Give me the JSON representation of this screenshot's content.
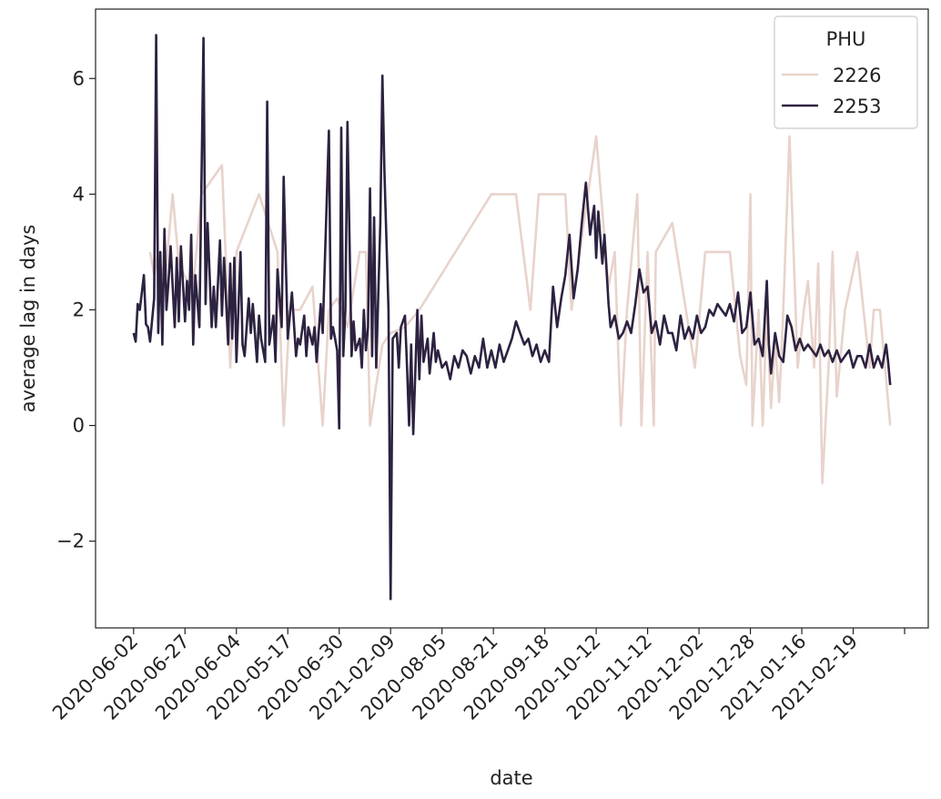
{
  "chart_data": {
    "type": "line",
    "xlabel": "date",
    "ylabel": "average lag in days",
    "legend_title": "PHU",
    "legend_position": "upper right",
    "xlim": [
      -18.5,
      386.5
    ],
    "ylim": [
      -3.5,
      7.2
    ],
    "xticks": [
      {
        "value": 0,
        "label": "2020-06-02"
      },
      {
        "value": 25,
        "label": "2020-06-27"
      },
      {
        "value": 50,
        "label": "2020-06-04"
      },
      {
        "value": 75,
        "label": "2020-05-17"
      },
      {
        "value": 100,
        "label": "2020-06-30"
      },
      {
        "value": 125,
        "label": "2021-02-09"
      },
      {
        "value": 150,
        "label": "2020-08-05"
      },
      {
        "value": 175,
        "label": "2020-08-21"
      },
      {
        "value": 200,
        "label": "2020-09-18"
      },
      {
        "value": 225,
        "label": "2020-10-12"
      },
      {
        "value": 250,
        "label": "2020-11-12"
      },
      {
        "value": 275,
        "label": "2020-12-02"
      },
      {
        "value": 300,
        "label": "2020-12-28"
      },
      {
        "value": 325,
        "label": "2021-01-16"
      },
      {
        "value": 350,
        "label": "2021-02-19"
      },
      {
        "value": 375,
        "label": null
      }
    ],
    "yticks": [
      {
        "value": -2,
        "label": "−2"
      },
      0,
      2,
      4,
      6
    ],
    "series": [
      {
        "name": "2226",
        "color": "#e8d3cc",
        "x": [
          8,
          10,
          12,
          15,
          19,
          22,
          26,
          29,
          33,
          43,
          47,
          50,
          61,
          70,
          73,
          76,
          81,
          87,
          92,
          95,
          99,
          104,
          110,
          113,
          115,
          121,
          125,
          132,
          139,
          174,
          186,
          193,
          197,
          210,
          213,
          225,
          231,
          234,
          237,
          240,
          245,
          247,
          250,
          253,
          254,
          262,
          273,
          278,
          290,
          295,
          298,
          300,
          301,
          304,
          306,
          308,
          310,
          312,
          314,
          316,
          319,
          323,
          326,
          328,
          331,
          333,
          335,
          338,
          340,
          342,
          346,
          352,
          358,
          360,
          363,
          368
        ],
        "values": [
          3.0,
          2.6,
          3.0,
          2.4,
          4.0,
          2.8,
          2.5,
          2.4,
          4.0,
          4.5,
          1.0,
          3.0,
          4.0,
          3.0,
          0.0,
          2.0,
          2.0,
          2.4,
          0.0,
          2.0,
          2.2,
          1.7,
          3.0,
          3.0,
          0.0,
          1.4,
          1.6,
          1.7,
          2.0,
          4.0,
          4.0,
          2.0,
          4.0,
          4.0,
          2.0,
          5.0,
          2.4,
          3.0,
          0.0,
          2.0,
          4.0,
          0.0,
          3.0,
          0.0,
          3.0,
          3.5,
          1.0,
          3.0,
          3.0,
          1.2,
          0.7,
          4.0,
          0.0,
          2.0,
          0.0,
          2.0,
          0.3,
          1.5,
          0.4,
          2.0,
          5.0,
          1.0,
          2.0,
          2.5,
          1.0,
          2.8,
          -1.0,
          1.0,
          3.0,
          0.5,
          2.0,
          3.0,
          1.0,
          2.0,
          2.0,
          0.0
        ]
      },
      {
        "name": "2253",
        "color": "#2d2240",
        "x": [
          0,
          1,
          2,
          3,
          5,
          6,
          7,
          8,
          10,
          11,
          12,
          13,
          14,
          15,
          16,
          17,
          18,
          20,
          21,
          22,
          23,
          25,
          26,
          27,
          28,
          29,
          30,
          32,
          34,
          35,
          36,
          38,
          39,
          40,
          42,
          43,
          44,
          46,
          47,
          48,
          49,
          50,
          52,
          53,
          54,
          56,
          57,
          58,
          60,
          61,
          62,
          64,
          65,
          66,
          68,
          69,
          70,
          72,
          73,
          75,
          76,
          77,
          79,
          80,
          81,
          83,
          84,
          85,
          87,
          88,
          89,
          91,
          92,
          93,
          95,
          96,
          97,
          99,
          100,
          101,
          102,
          103,
          104,
          106,
          107,
          108,
          110,
          111,
          112,
          113,
          114,
          115,
          116,
          117,
          118,
          120,
          121,
          122,
          124,
          125,
          126,
          128,
          129,
          130,
          132,
          133,
          134,
          135,
          136,
          138,
          139,
          140,
          141,
          143,
          144,
          146,
          147,
          148,
          150,
          152,
          154,
          156,
          158,
          160,
          162,
          164,
          166,
          168,
          170,
          172,
          174,
          176,
          178,
          180,
          182,
          184,
          186,
          188,
          190,
          192,
          194,
          196,
          198,
          200,
          202,
          204,
          206,
          208,
          210,
          212,
          214,
          216,
          218,
          220,
          222,
          224,
          225,
          226,
          228,
          229,
          231,
          232,
          234,
          236,
          238,
          240,
          242,
          244,
          246,
          248,
          250,
          252,
          254,
          256,
          258,
          260,
          262,
          264,
          266,
          268,
          270,
          272,
          274,
          276,
          278,
          280,
          282,
          284,
          286,
          288,
          290,
          292,
          294,
          296,
          298,
          300,
          302,
          304,
          306,
          308,
          309,
          310,
          312,
          314,
          316,
          318,
          320,
          322,
          324,
          326,
          328,
          330,
          332,
          334,
          336,
          338,
          340,
          342,
          344,
          346,
          348,
          350,
          352,
          354,
          356,
          358,
          360,
          362,
          364,
          366,
          367,
          368
        ],
        "values": [
          1.6,
          1.45,
          2.1,
          2.0,
          2.6,
          1.75,
          1.7,
          1.45,
          2.2,
          6.75,
          1.6,
          3.0,
          1.4,
          3.4,
          2.0,
          2.5,
          3.1,
          1.7,
          2.9,
          1.8,
          3.1,
          1.8,
          2.5,
          2.0,
          3.3,
          1.4,
          2.6,
          1.7,
          6.7,
          2.1,
          3.5,
          1.7,
          2.4,
          1.7,
          3.2,
          1.9,
          2.9,
          1.4,
          2.8,
          1.5,
          2.9,
          1.1,
          3.0,
          1.4,
          1.2,
          2.2,
          1.6,
          2.1,
          1.1,
          1.9,
          1.5,
          1.1,
          5.6,
          1.4,
          1.9,
          1.1,
          2.7,
          1.7,
          4.3,
          1.5,
          1.9,
          2.3,
          1.2,
          1.5,
          1.4,
          1.9,
          1.2,
          1.7,
          1.4,
          1.7,
          1.1,
          2.1,
          1.6,
          2.8,
          5.1,
          1.5,
          1.7,
          1.3,
          -0.05,
          5.15,
          1.2,
          2.0,
          5.25,
          1.2,
          1.8,
          1.3,
          1.5,
          1.0,
          2.0,
          1.3,
          1.7,
          4.1,
          1.2,
          3.6,
          1.0,
          3.5,
          6.05,
          4.4,
          2.0,
          -3.0,
          1.5,
          1.6,
          1.0,
          1.7,
          1.9,
          1.0,
          0.0,
          1.4,
          -0.15,
          2.0,
          0.8,
          1.9,
          1.1,
          1.5,
          0.9,
          1.6,
          1.1,
          1.3,
          1.0,
          1.1,
          0.8,
          1.2,
          1.0,
          1.3,
          1.2,
          0.9,
          1.2,
          1.0,
          1.5,
          1.0,
          1.3,
          1.0,
          1.4,
          1.1,
          1.3,
          1.5,
          1.8,
          1.6,
          1.4,
          1.5,
          1.2,
          1.4,
          1.1,
          1.3,
          1.1,
          2.4,
          1.7,
          2.2,
          2.6,
          3.3,
          2.2,
          2.7,
          3.5,
          4.2,
          3.3,
          3.8,
          2.9,
          3.7,
          2.8,
          3.3,
          2.1,
          1.7,
          1.9,
          1.5,
          1.6,
          1.8,
          1.6,
          2.1,
          2.7,
          2.3,
          2.4,
          1.6,
          1.8,
          1.4,
          1.9,
          1.6,
          1.6,
          1.3,
          1.9,
          1.5,
          1.7,
          1.5,
          1.9,
          1.6,
          1.7,
          2.0,
          1.9,
          2.1,
          2.0,
          1.9,
          2.1,
          1.8,
          2.3,
          1.6,
          1.7,
          2.3,
          1.4,
          1.5,
          1.2,
          2.5,
          1.4,
          0.9,
          1.6,
          1.2,
          1.1,
          1.9,
          1.7,
          1.3,
          1.5,
          1.3,
          1.4,
          1.3,
          1.2,
          1.4,
          1.2,
          1.3,
          1.1,
          1.3,
          1.1,
          1.2,
          1.3,
          1.0,
          1.2,
          1.2,
          1.0,
          1.4,
          1.0,
          1.2,
          1.0,
          1.4,
          1.1,
          0.7
        ]
      }
    ]
  }
}
